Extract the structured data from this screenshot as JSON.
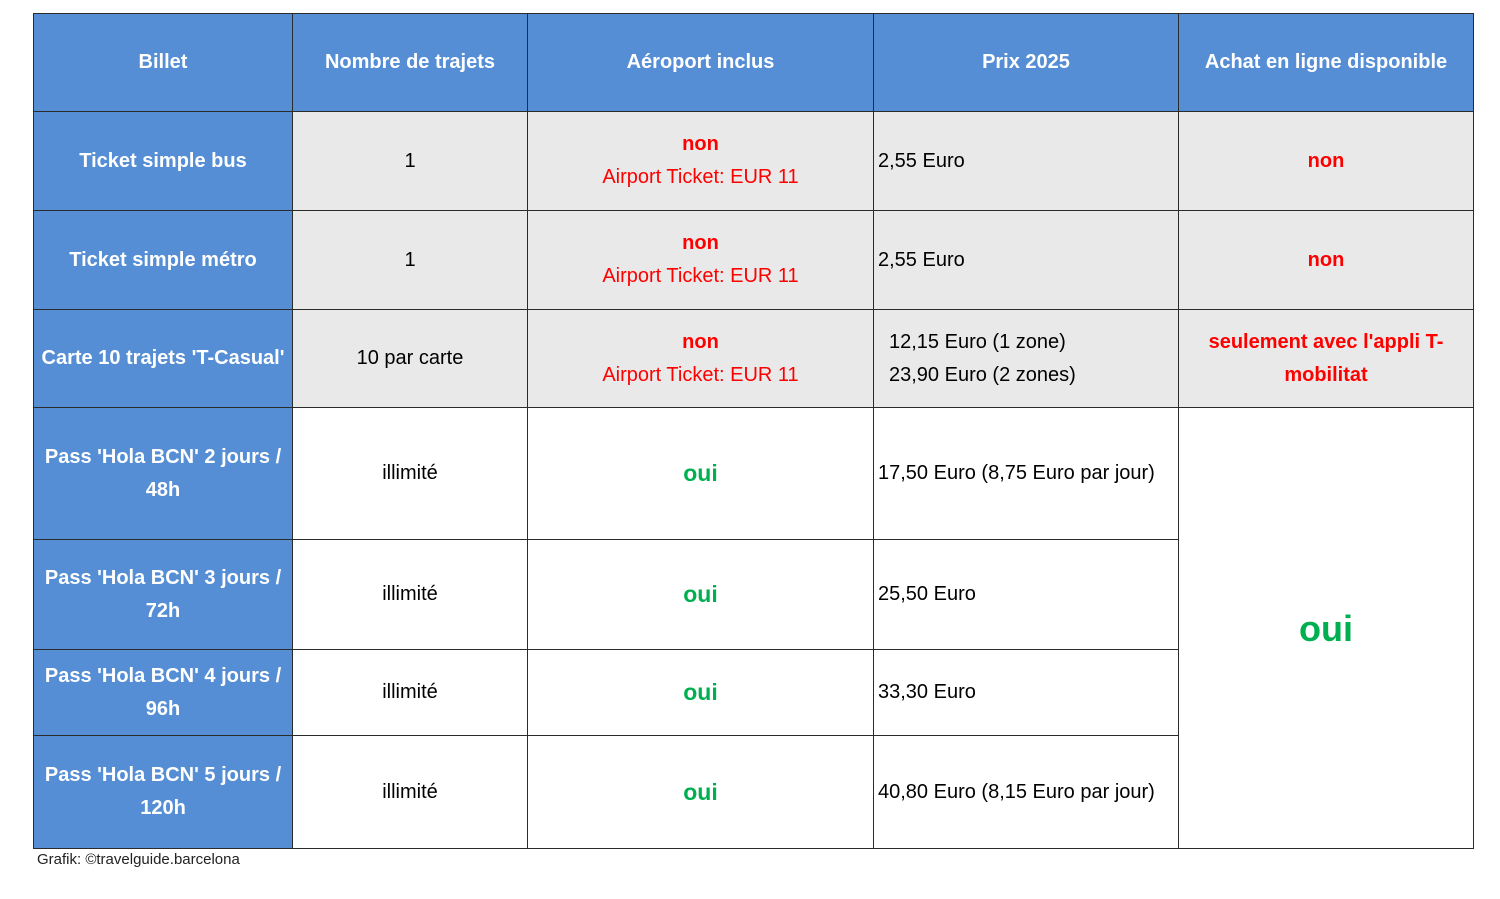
{
  "headers": [
    "Billet",
    "Nombre de trajets",
    "Aéroport inclus",
    "Prix 2025",
    "Achat en ligne disponible"
  ],
  "rows": [
    {
      "billet": "Ticket simple bus",
      "trajets": "1",
      "aeroport": "non",
      "aeroport_note": "Airport Ticket: EUR 11",
      "prix": [
        "2,55 Euro"
      ],
      "achat": "non"
    },
    {
      "billet": "Ticket simple métro",
      "trajets": "1",
      "aeroport": "non",
      "aeroport_note": "Airport Ticket: EUR 11",
      "prix": [
        "2,55 Euro"
      ],
      "achat": "non"
    },
    {
      "billet": "Carte 10 trajets 'T-Casual'",
      "trajets": "10 par carte",
      "aeroport": "non",
      "aeroport_note": "Airport Ticket: EUR 11",
      "prix": [
        "12,15 Euro (1 zone)",
        "23,90 Euro (2 zones)"
      ],
      "achat": "seulement avec l'appli T-mobilitat"
    },
    {
      "billet": "Pass 'Hola BCN' 2 jours / 48h",
      "trajets": "illimité",
      "aeroport": "oui",
      "prix": [
        "17,50 Euro (8,75 Euro par jour)"
      ]
    },
    {
      "billet": "Pass 'Hola BCN' 3 jours / 72h",
      "trajets": "illimité",
      "aeroport": "oui",
      "prix": [
        "25,50 Euro"
      ]
    },
    {
      "billet": "Pass 'Hola BCN' 4 jours / 96h",
      "trajets": "illimité",
      "aeroport": "oui",
      "prix": [
        "33,30 Euro"
      ]
    },
    {
      "billet": "Pass 'Hola BCN' 5 jours / 120h",
      "trajets": "illimité",
      "aeroport": "oui",
      "prix": [
        "40,80 Euro (8,15 Euro par jour)"
      ]
    }
  ],
  "pass_achat": "oui",
  "credit": "Grafik: ©travelguide.barcelona",
  "colors": {
    "header": "#558ED5",
    "shaded": "#E9E9E9",
    "no": "#FF0000",
    "yes": "#00B050"
  }
}
